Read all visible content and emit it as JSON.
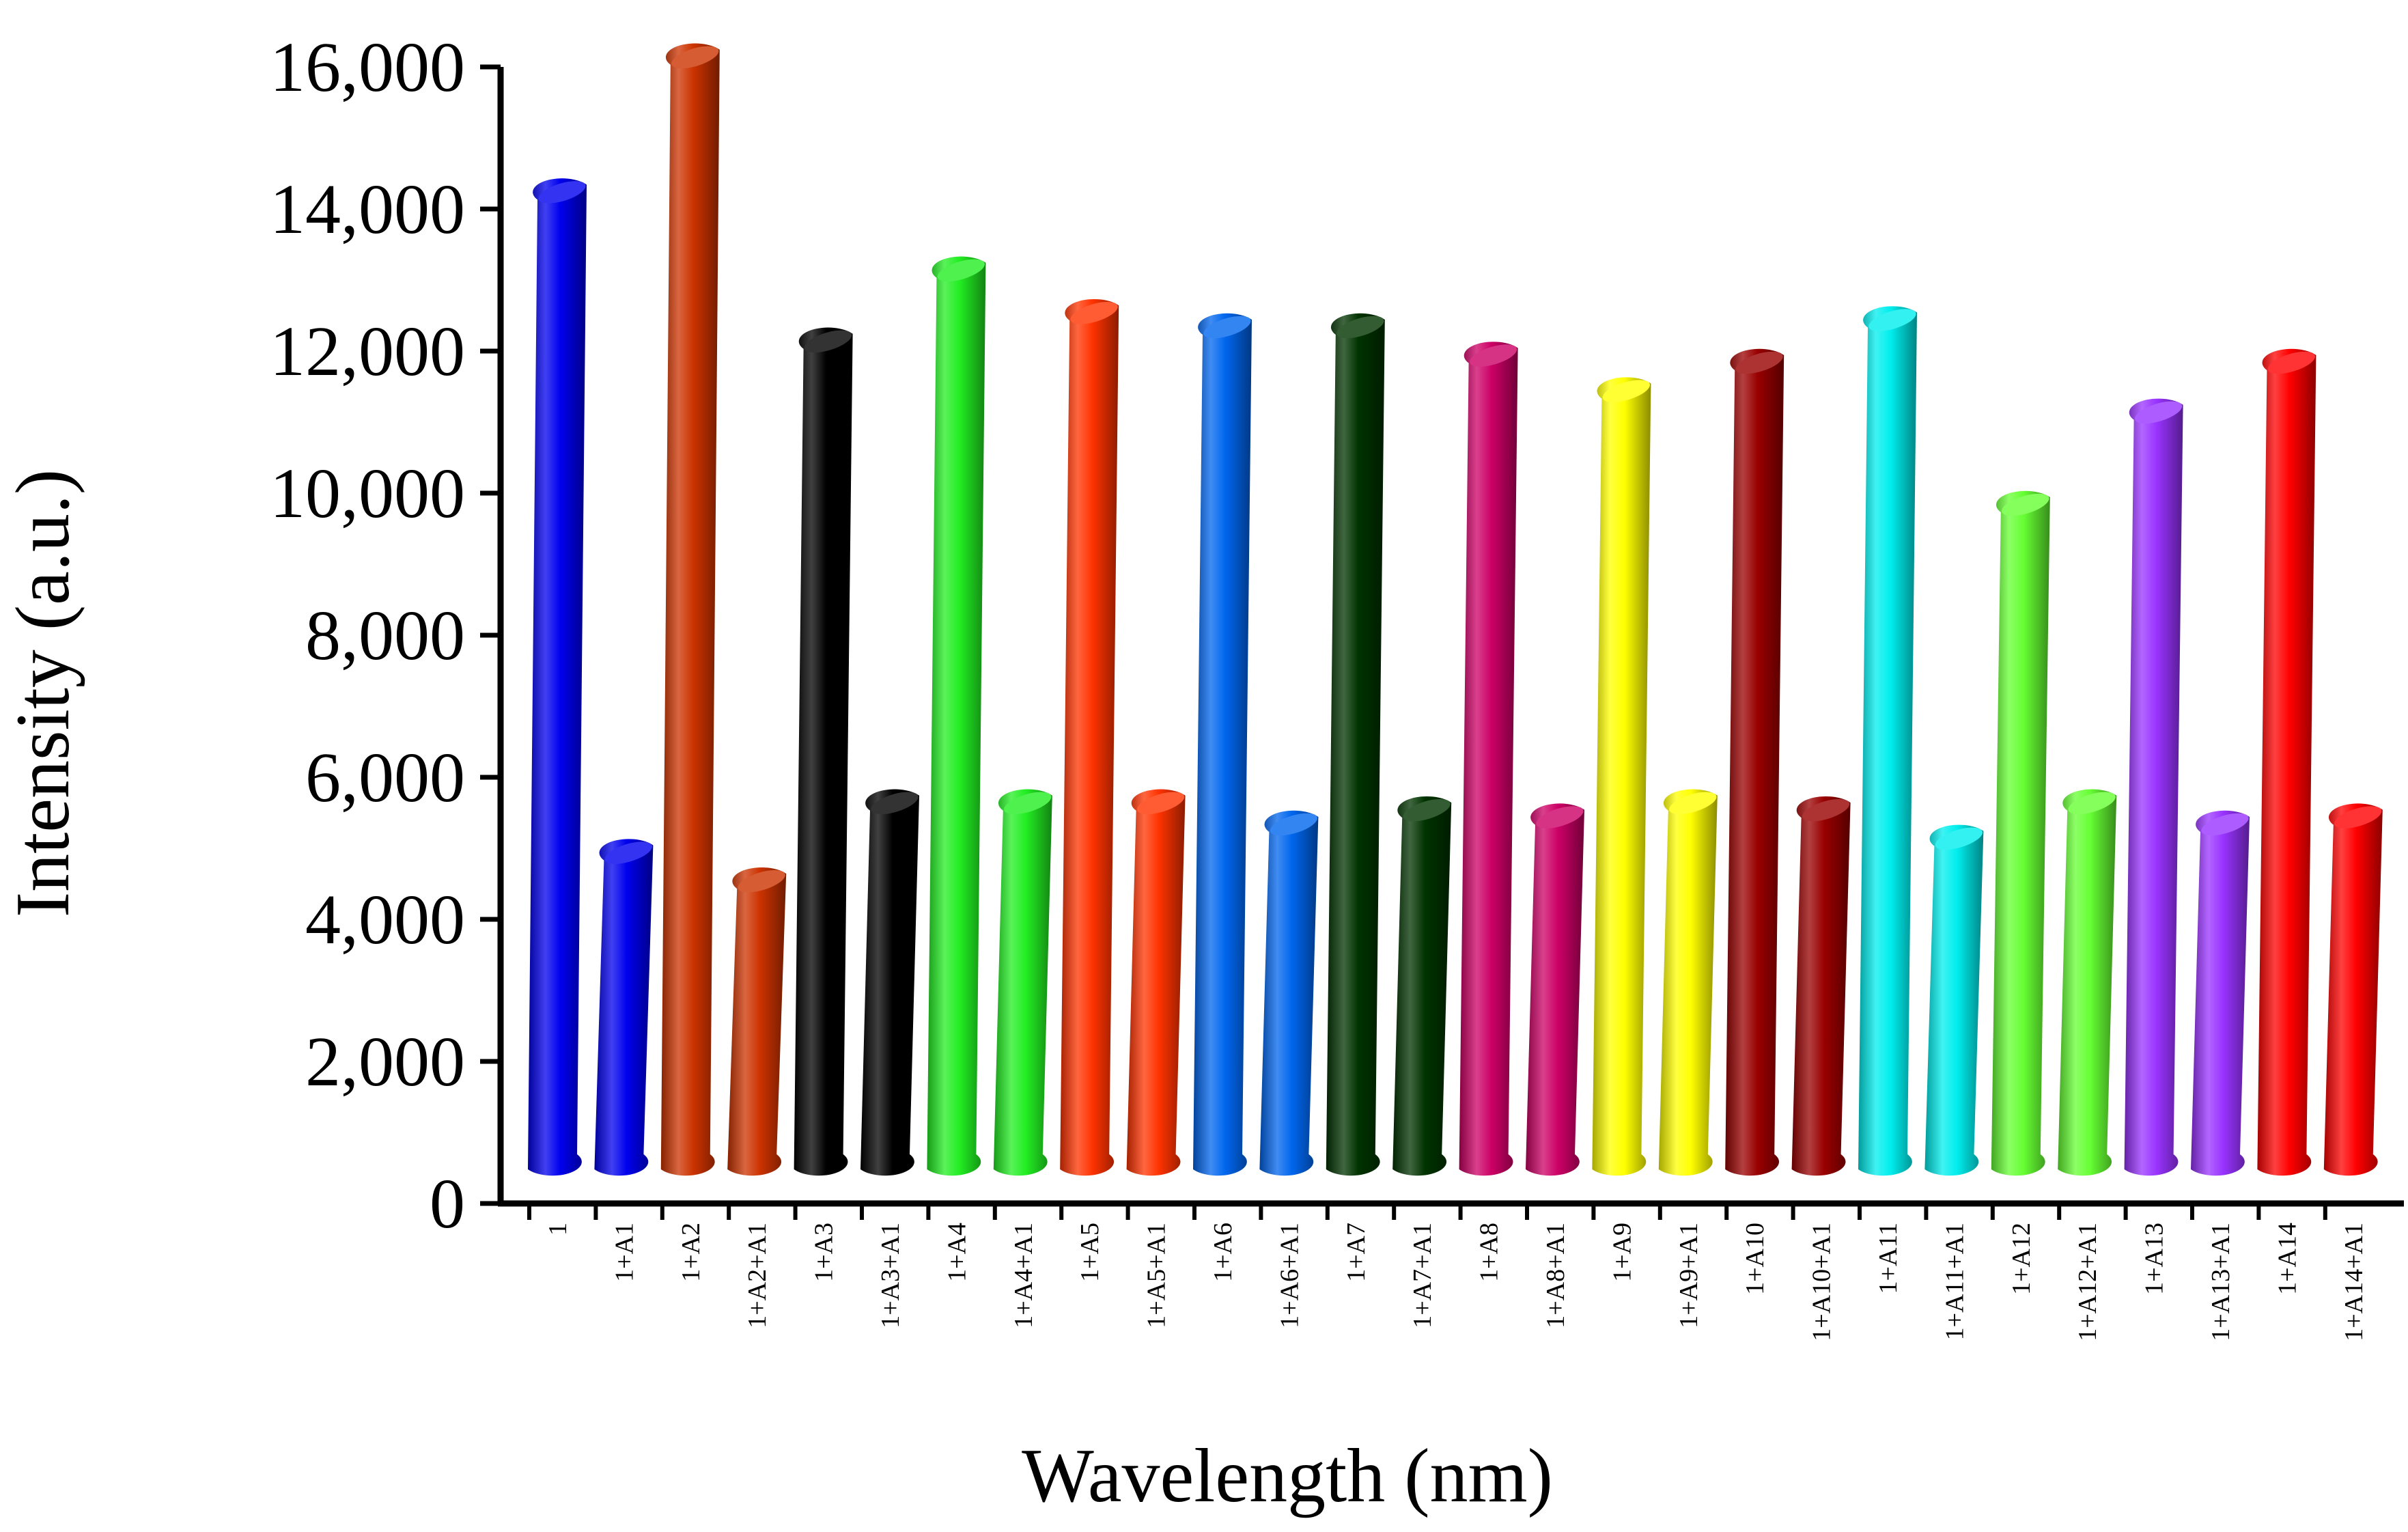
{
  "chart_data": {
    "type": "bar",
    "style": "3d-cylinder",
    "title": "",
    "xlabel": "Wavelength (nm)",
    "ylabel": "Intensity (a.u.)",
    "ylim": [
      0,
      16000
    ],
    "yticks": [
      0,
      2000,
      4000,
      6000,
      8000,
      10000,
      12000,
      14000,
      16000
    ],
    "ytick_labels": [
      "0",
      "2,000",
      "4,000",
      "6,000",
      "8,000",
      "10,000",
      "12,000",
      "14,000",
      "16,000"
    ],
    "grid": false,
    "legend": "none",
    "categories": [
      "1",
      "1+A1",
      "1+A2",
      "1+A2+A1",
      "1+A3",
      "1+A3+A1",
      "1+A4",
      "1+A4+A1",
      "1+A5",
      "1+A5+A1",
      "1+A6",
      "1+A6+A1",
      "1+A7",
      "1+A7+A1",
      "1+A8",
      "1+A8+A1",
      "1+A9",
      "1+A9+A1",
      "1+A10",
      "1+A10+A1",
      "1+A11",
      "1+A11+A1",
      "1+A12",
      "1+A12+A1",
      "1+A13",
      "1+A13+A1",
      "1+A14",
      "1+A14+A1"
    ],
    "values": [
      14400,
      5100,
      16300,
      4700,
      12300,
      5800,
      13300,
      5800,
      12700,
      5800,
      12500,
      5500,
      12500,
      5700,
      12100,
      5600,
      11600,
      5800,
      12000,
      5700,
      12600,
      5300,
      10000,
      5800,
      11300,
      5500,
      12000,
      5600
    ],
    "colors": [
      "#0000ee",
      "#0000ee",
      "#cc3300",
      "#cc3300",
      "#000000",
      "#000000",
      "#22ee22",
      "#22ee22",
      "#ff3300",
      "#ff3300",
      "#0066ee",
      "#0066ee",
      "#003300",
      "#003300",
      "#cc0066",
      "#cc0066",
      "#ffff00",
      "#ffff00",
      "#990000",
      "#990000",
      "#00eeee",
      "#00eeee",
      "#66ff33",
      "#66ff33",
      "#9933ff",
      "#9933ff",
      "#ff0000",
      "#ff0000"
    ]
  }
}
